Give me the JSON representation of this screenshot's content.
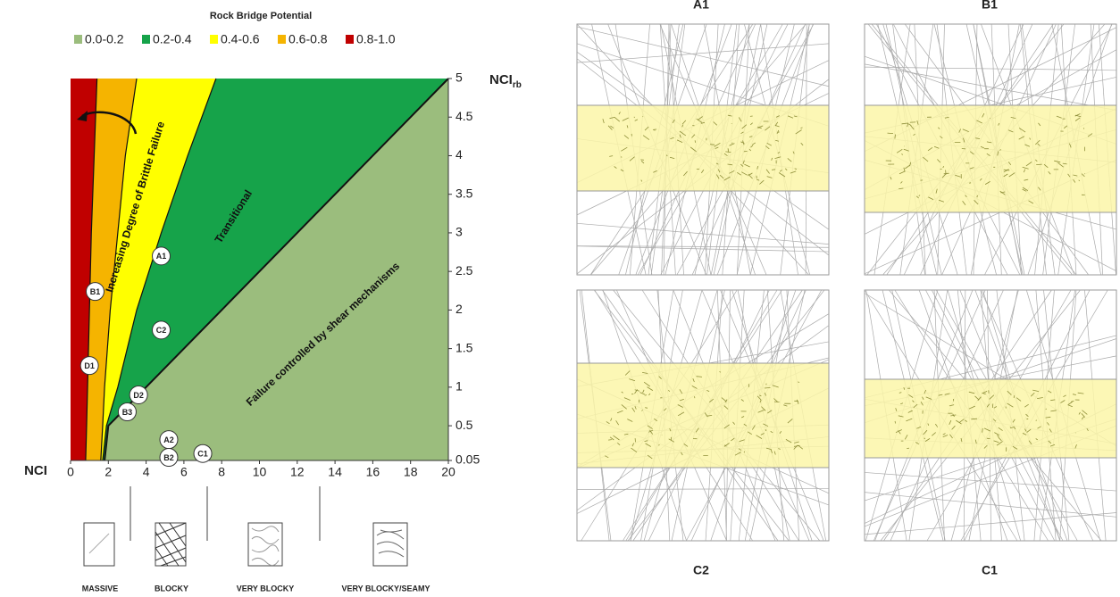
{
  "chart_data": {
    "type": "region",
    "title": "Rock Bridge Potential",
    "x_label": "NCI",
    "y_label": "NCI",
    "y_label_sub": "rb",
    "xlim": [
      0,
      20
    ],
    "ylim": [
      0.05,
      5
    ],
    "xticks": [
      0,
      2,
      4,
      6,
      8,
      10,
      12,
      14,
      16,
      18,
      20
    ],
    "yticks": [
      0.05,
      0.5,
      1,
      1.5,
      2,
      2.5,
      3,
      3.5,
      4,
      4.5,
      5
    ],
    "y_levels": [
      0.05,
      0.5,
      1,
      2,
      3,
      4,
      5
    ],
    "series": [
      {
        "name": "0.0-0.2",
        "color": "#9bbd7d",
        "x_right": [
          20,
          20,
          20,
          20,
          20,
          20,
          20
        ]
      },
      {
        "name": "0.2-0.4",
        "color": "#16a34a",
        "x_right": [
          1.8,
          2.0,
          4,
          8,
          12,
          16,
          20
        ]
      },
      {
        "name": "0.4-0.6",
        "color": "#ffff00",
        "x_right": [
          1.7,
          1.9,
          2.5,
          3.5,
          4.8,
          6.2,
          7.7
        ]
      },
      {
        "name": "0.6-0.8",
        "color": "#f5b400",
        "x_right": [
          1.6,
          1.7,
          1.8,
          2.1,
          2.5,
          2.9,
          3.5
        ]
      },
      {
        "name": "0.8-1.0",
        "color": "#c00000",
        "x_right": [
          0.8,
          0.85,
          0.9,
          1.0,
          1.1,
          1.25,
          1.4
        ]
      }
    ],
    "points": [
      {
        "label": "A1",
        "x": 4.8,
        "y": 2.7
      },
      {
        "label": "B1",
        "x": 1.3,
        "y": 2.24
      },
      {
        "label": "C2",
        "x": 4.8,
        "y": 1.74
      },
      {
        "label": "D1",
        "x": 1.0,
        "y": 1.28
      },
      {
        "label": "D2",
        "x": 3.6,
        "y": 0.9
      },
      {
        "label": "B3",
        "x": 3.0,
        "y": 0.68
      },
      {
        "label": "A2",
        "x": 5.2,
        "y": 0.32
      },
      {
        "label": "B2",
        "x": 5.2,
        "y": 0.09
      },
      {
        "label": "C1",
        "x": 7.0,
        "y": 0.14
      }
    ],
    "annotations": [
      "Increasing Degree of Brittle Failure",
      "Transitional",
      "Failure controlled by shear mechanisms"
    ],
    "rock_mass_classes": [
      "MASSIVE",
      "BLOCKY",
      "VERY BLOCKY",
      "VERY BLOCKY/SEAMY"
    ]
  },
  "panels": [
    {
      "title": "A1"
    },
    {
      "title": "B1"
    },
    {
      "title": "C2"
    },
    {
      "title": "C1"
    }
  ]
}
